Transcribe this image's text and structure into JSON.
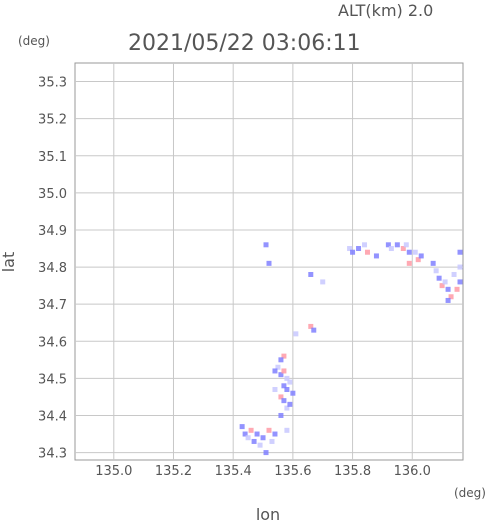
{
  "header": {
    "altitude_label": "ALT(km) 2.0",
    "timestamp": "2021/05/22 03:06:11"
  },
  "chart_data": {
    "type": "scatter",
    "title": "2021/05/22 03:06:11",
    "xlabel": "lon",
    "ylabel": "lat",
    "x_unit": "(deg)",
    "y_unit": "(deg)",
    "xlim": [
      134.87,
      136.17
    ],
    "ylim": [
      34.28,
      35.35
    ],
    "grid": true,
    "x_ticks": [
      135.0,
      135.2,
      135.4,
      135.6,
      135.8,
      136.0
    ],
    "x_tick_labels": [
      "135.0",
      "135.2",
      "135.4",
      "135.6",
      "135.8",
      "136.0"
    ],
    "y_ticks": [
      34.3,
      34.4,
      34.5,
      34.6,
      34.7,
      34.8,
      34.9,
      35.0,
      35.1,
      35.2,
      35.3
    ],
    "y_tick_labels": [
      "34.3",
      "34.4",
      "34.5",
      "34.6",
      "34.7",
      "34.8",
      "34.9",
      "35.0",
      "35.1",
      "35.2",
      "35.3"
    ],
    "colors": {
      "low": "#8080ff",
      "mid": "#c8c8ff",
      "high": "#ff9aa6",
      "grid": "#c8c8c8",
      "frame": "#999999"
    },
    "echo_points": [
      {
        "lon": 135.51,
        "lat": 34.86,
        "level": "low"
      },
      {
        "lon": 135.52,
        "lat": 34.81,
        "level": "low"
      },
      {
        "lon": 135.79,
        "lat": 34.85,
        "level": "mid"
      },
      {
        "lon": 135.8,
        "lat": 34.84,
        "level": "low"
      },
      {
        "lon": 135.82,
        "lat": 34.85,
        "level": "low"
      },
      {
        "lon": 135.84,
        "lat": 34.86,
        "level": "mid"
      },
      {
        "lon": 135.85,
        "lat": 34.84,
        "level": "high"
      },
      {
        "lon": 135.88,
        "lat": 34.83,
        "level": "low"
      },
      {
        "lon": 135.92,
        "lat": 34.86,
        "level": "low"
      },
      {
        "lon": 135.93,
        "lat": 34.85,
        "level": "mid"
      },
      {
        "lon": 135.95,
        "lat": 34.86,
        "level": "low"
      },
      {
        "lon": 135.97,
        "lat": 34.85,
        "level": "high"
      },
      {
        "lon": 135.98,
        "lat": 34.86,
        "level": "mid"
      },
      {
        "lon": 135.99,
        "lat": 34.84,
        "level": "low"
      },
      {
        "lon": 136.01,
        "lat": 34.84,
        "level": "mid"
      },
      {
        "lon": 136.02,
        "lat": 34.82,
        "level": "high"
      },
      {
        "lon": 136.03,
        "lat": 34.83,
        "level": "low"
      },
      {
        "lon": 135.99,
        "lat": 34.81,
        "level": "high"
      },
      {
        "lon": 136.07,
        "lat": 34.81,
        "level": "low"
      },
      {
        "lon": 136.08,
        "lat": 34.79,
        "level": "mid"
      },
      {
        "lon": 136.09,
        "lat": 34.77,
        "level": "low"
      },
      {
        "lon": 136.1,
        "lat": 34.75,
        "level": "high"
      },
      {
        "lon": 136.11,
        "lat": 34.76,
        "level": "mid"
      },
      {
        "lon": 136.12,
        "lat": 34.74,
        "level": "low"
      },
      {
        "lon": 136.13,
        "lat": 34.72,
        "level": "high"
      },
      {
        "lon": 136.14,
        "lat": 34.78,
        "level": "mid"
      },
      {
        "lon": 136.15,
        "lat": 34.74,
        "level": "high"
      },
      {
        "lon": 136.16,
        "lat": 34.76,
        "level": "low"
      },
      {
        "lon": 136.16,
        "lat": 34.8,
        "level": "mid"
      },
      {
        "lon": 136.12,
        "lat": 34.71,
        "level": "low"
      },
      {
        "lon": 136.16,
        "lat": 34.84,
        "level": "low"
      },
      {
        "lon": 135.66,
        "lat": 34.78,
        "level": "low"
      },
      {
        "lon": 135.7,
        "lat": 34.76,
        "level": "mid"
      },
      {
        "lon": 135.66,
        "lat": 34.64,
        "level": "high"
      },
      {
        "lon": 135.67,
        "lat": 34.63,
        "level": "low"
      },
      {
        "lon": 135.61,
        "lat": 34.62,
        "level": "mid"
      },
      {
        "lon": 135.57,
        "lat": 34.56,
        "level": "high"
      },
      {
        "lon": 135.56,
        "lat": 34.55,
        "level": "low"
      },
      {
        "lon": 135.55,
        "lat": 34.53,
        "level": "mid"
      },
      {
        "lon": 135.54,
        "lat": 34.52,
        "level": "low"
      },
      {
        "lon": 135.56,
        "lat": 34.51,
        "level": "low"
      },
      {
        "lon": 135.57,
        "lat": 34.52,
        "level": "high"
      },
      {
        "lon": 135.58,
        "lat": 34.5,
        "level": "mid"
      },
      {
        "lon": 135.57,
        "lat": 34.48,
        "level": "low"
      },
      {
        "lon": 135.58,
        "lat": 34.47,
        "level": "low"
      },
      {
        "lon": 135.59,
        "lat": 34.49,
        "level": "mid"
      },
      {
        "lon": 135.6,
        "lat": 34.46,
        "level": "low"
      },
      {
        "lon": 135.56,
        "lat": 34.45,
        "level": "high"
      },
      {
        "lon": 135.57,
        "lat": 34.44,
        "level": "low"
      },
      {
        "lon": 135.58,
        "lat": 34.42,
        "level": "mid"
      },
      {
        "lon": 135.56,
        "lat": 34.4,
        "level": "low"
      },
      {
        "lon": 135.59,
        "lat": 34.43,
        "level": "low"
      },
      {
        "lon": 135.54,
        "lat": 34.47,
        "level": "mid"
      },
      {
        "lon": 135.46,
        "lat": 34.36,
        "level": "high"
      },
      {
        "lon": 135.44,
        "lat": 34.35,
        "level": "low"
      },
      {
        "lon": 135.45,
        "lat": 34.34,
        "level": "mid"
      },
      {
        "lon": 135.47,
        "lat": 34.33,
        "level": "low"
      },
      {
        "lon": 135.48,
        "lat": 34.35,
        "level": "low"
      },
      {
        "lon": 135.49,
        "lat": 34.32,
        "level": "mid"
      },
      {
        "lon": 135.5,
        "lat": 34.34,
        "level": "low"
      },
      {
        "lon": 135.51,
        "lat": 34.3,
        "level": "low"
      },
      {
        "lon": 135.52,
        "lat": 34.36,
        "level": "high"
      },
      {
        "lon": 135.53,
        "lat": 34.33,
        "level": "mid"
      },
      {
        "lon": 135.54,
        "lat": 34.35,
        "level": "low"
      },
      {
        "lon": 135.58,
        "lat": 34.36,
        "level": "mid"
      },
      {
        "lon": 135.43,
        "lat": 34.37,
        "level": "low"
      }
    ]
  }
}
